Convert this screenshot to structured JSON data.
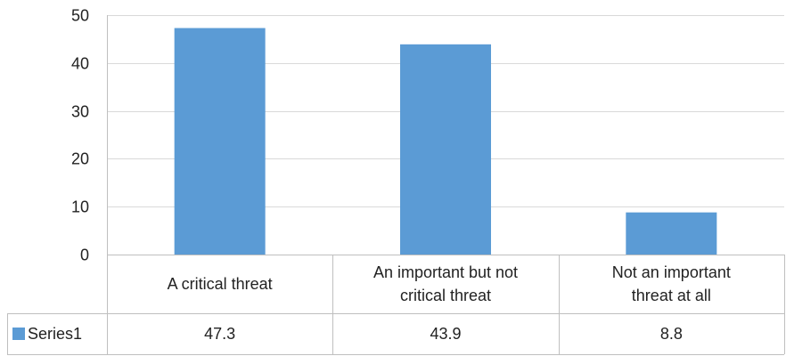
{
  "chart_data": {
    "type": "bar",
    "title": "",
    "xlabel": "",
    "ylabel": "",
    "categories": [
      [
        "A critical threat"
      ],
      [
        "An important but not",
        "critical threat"
      ],
      [
        "Not an important",
        "threat at all"
      ]
    ],
    "series": [
      {
        "name": "Series1",
        "values": [
          47.3,
          43.9,
          8.8
        ],
        "color": "#5B9BD5"
      }
    ],
    "value_labels": [
      "47.3",
      "43.9",
      "8.8"
    ],
    "ylim": [
      0,
      50
    ],
    "yticks": [
      0,
      10,
      20,
      30,
      40,
      50
    ],
    "grid": true,
    "legend": "data-table",
    "data_table": true
  }
}
